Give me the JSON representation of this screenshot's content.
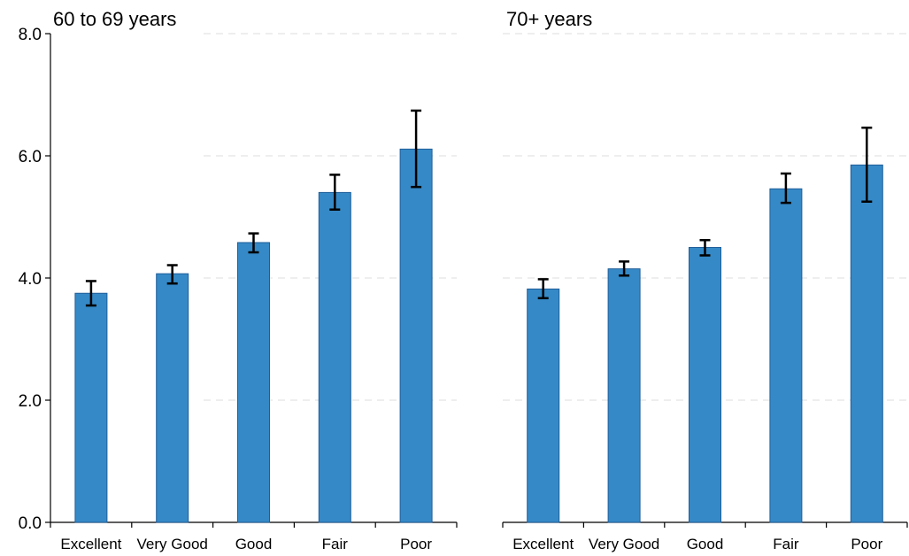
{
  "chart_data": [
    {
      "type": "bar",
      "title": "60 to 69 years",
      "categories": [
        "Excellent",
        "Very Good",
        "Good",
        "Fair",
        "Poor"
      ],
      "values": [
        3.75,
        4.07,
        4.58,
        5.4,
        6.11
      ],
      "error_bars": [
        [
          3.55,
          3.95
        ],
        [
          3.91,
          4.21
        ],
        [
          4.42,
          4.73
        ],
        [
          5.12,
          5.69
        ],
        [
          5.49,
          6.74
        ]
      ],
      "ylim": [
        0,
        8
      ],
      "yticks": [
        0,
        2,
        4,
        6,
        8
      ],
      "ytick_labels": [
        "0.0",
        "2.0",
        "4.0",
        "6.0",
        "8.0"
      ],
      "xlabel": "",
      "ylabel": "",
      "grid": "horizontal dashed",
      "bar_color": "#3589c6",
      "bar_edge_color": "#1f5e9a",
      "error_color": "#000000"
    },
    {
      "type": "bar",
      "title": "70+ years",
      "categories": [
        "Excellent",
        "Very Good",
        "Good",
        "Fair",
        "Poor"
      ],
      "values": [
        3.82,
        4.15,
        4.5,
        5.46,
        5.85
      ],
      "error_bars": [
        [
          3.67,
          3.98
        ],
        [
          4.04,
          4.27
        ],
        [
          4.37,
          4.62
        ],
        [
          5.23,
          5.71
        ],
        [
          5.25,
          6.46
        ]
      ],
      "ylim": [
        0,
        8
      ],
      "yticks": [
        0,
        2,
        4,
        6,
        8
      ],
      "ytick_labels": [],
      "xlabel": "",
      "ylabel": "",
      "grid": "horizontal dashed",
      "bar_color": "#3589c6",
      "bar_edge_color": "#1f5e9a",
      "error_color": "#000000"
    }
  ]
}
